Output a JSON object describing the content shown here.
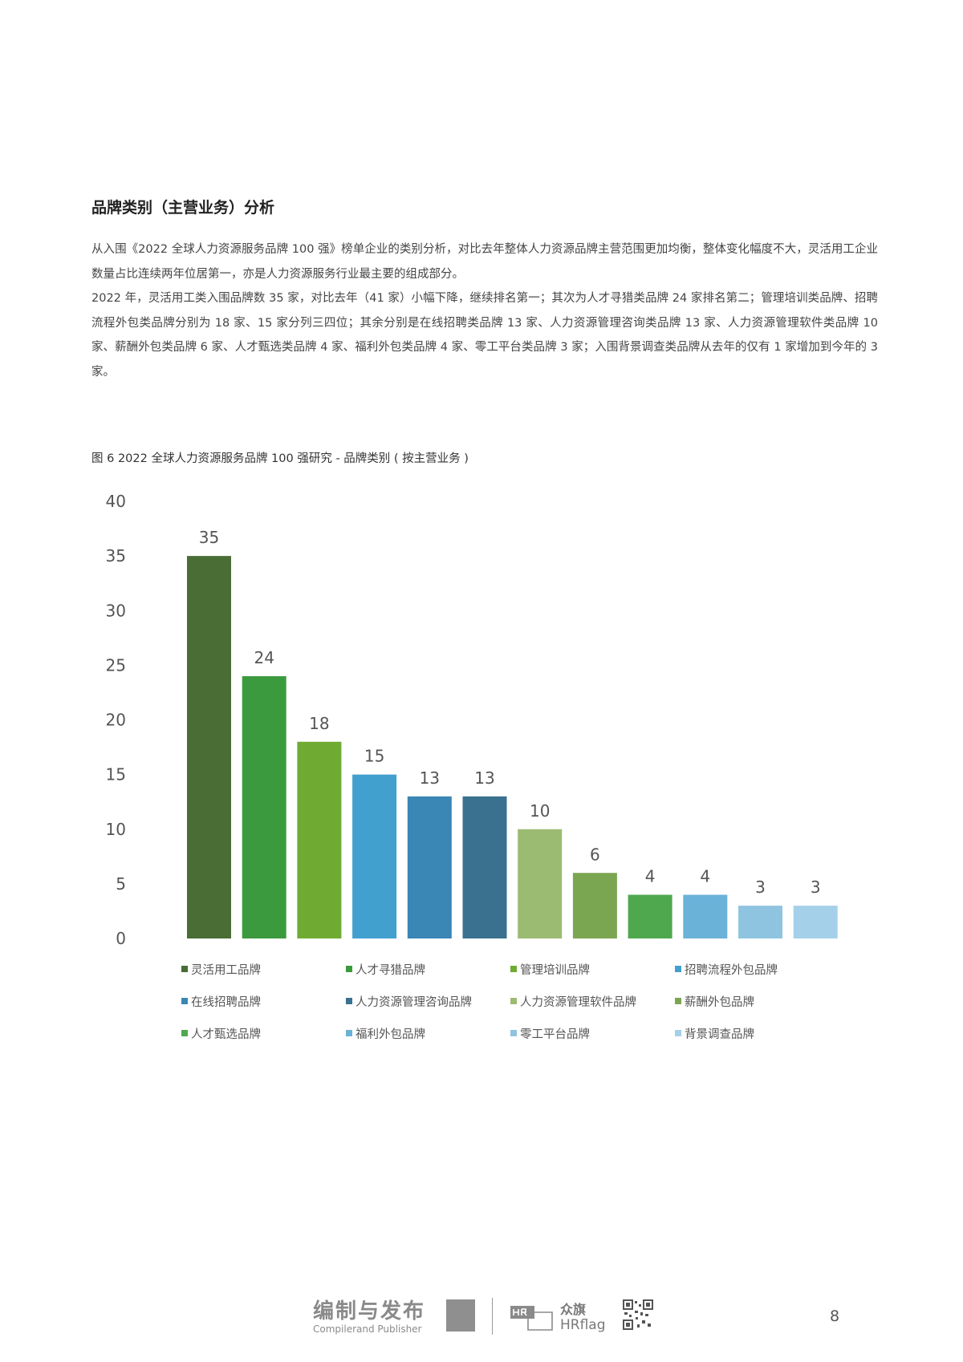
{
  "section_title": "品牌类别（主营业务）分析",
  "paragraphs": [
    "从入围《2022 全球人力资源服务品牌 100 强》榜单企业的类别分析，对比去年整体人力资源品牌主营范围更加均衡，整体变化幅度不大，灵活用工企业数量占比连续两年位居第一，亦是人力资源服务行业最主要的组成部分。",
    "2022 年，灵活用工类入围品牌数 35 家，对比去年（41 家）小幅下降，继续排名第一；其次为人才寻猎类品牌 24 家排名第二；管理培训类品牌、招聘流程外包类品牌分别为 18 家、15 家分列三四位；其余分别是在线招聘类品牌 13 家、人力资源管理咨询类品牌 13 家、人力资源管理软件类品牌 10 家、薪酬外包类品牌 6 家、人才甄选类品牌 4 家、福利外包类品牌 4 家、零工平台类品牌 3 家；入围背景调查类品牌从去年的仅有 1 家增加到今年的 3 家。"
  ],
  "figure_caption": "图 6  2022 全球人力资源服务品牌 100 强研究 - 品牌类别 ( 按主营业务 )",
  "chart_data": {
    "type": "bar",
    "title": "",
    "xlabel": "",
    "ylabel": "",
    "ylim": [
      0,
      40
    ],
    "yticks": [
      0,
      5,
      10,
      15,
      20,
      25,
      30,
      35,
      40
    ],
    "grid": false,
    "legend_position": "bottom",
    "categories": [
      "灵活用工品牌",
      "人才寻猎品牌",
      "管理培训品牌",
      "招聘流程外包品牌",
      "在线招聘品牌",
      "人力资源管理咨询品牌",
      "人力资源管理软件品牌",
      "薪酬外包品牌",
      "人才甄选品牌",
      "福利外包品牌",
      "零工平台品牌",
      "背景调查品牌"
    ],
    "values": [
      35,
      24,
      18,
      15,
      13,
      13,
      10,
      6,
      4,
      4,
      3,
      3
    ],
    "colors": [
      "#496d35",
      "#3b9a3d",
      "#6fab32",
      "#42a0cf",
      "#3a86b5",
      "#39718f",
      "#9cbb72",
      "#7ba651",
      "#4fa84e",
      "#6bb2d8",
      "#8fc4e0",
      "#a5d0ea"
    ]
  },
  "footer": {
    "publisher_title": "编制与发布",
    "publisher_sub": "Compilerand Publisher",
    "hrflag_cn": "众旗",
    "hrflag_en": "HRflag",
    "page_number": "8"
  }
}
